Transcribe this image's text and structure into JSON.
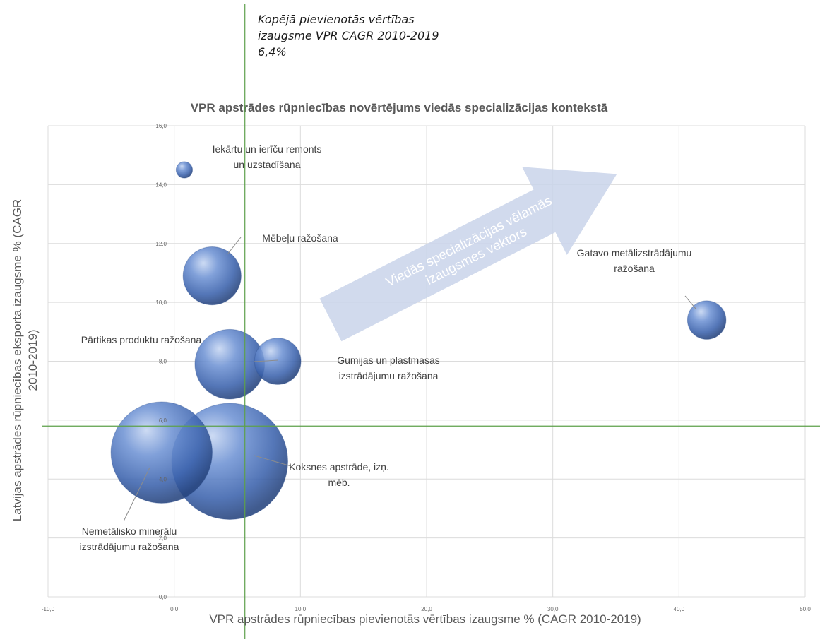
{
  "annotation": {
    "line1": "Kopējā pievienotās vērtības",
    "line2": "izaugsme VPR CAGR 2010-2019",
    "line3": "6,4%"
  },
  "chart_data": {
    "type": "bubble",
    "title": "VPR apstrādes rūpniecības novērtējums viedās specializācijas kontekstā",
    "xlabel": "VPR apstrādes rūpniecības pievienotās vērtības izaugsme % (CAGR 2010-2019)",
    "ylabel_lines": [
      "Latvijas apstrādes rūpniecības eksporta izaugsme % (CAGR",
      "2010-2019)"
    ],
    "xlim": [
      -10,
      50
    ],
    "ylim": [
      0,
      16
    ],
    "xticks": [
      "-10,0",
      "0,0",
      "10,0",
      "20,0",
      "30,0",
      "40,0",
      "50,0"
    ],
    "yticks": [
      "0,0",
      "2,0",
      "4,0",
      "6,0",
      "8,0",
      "10,0",
      "12,0",
      "14,0",
      "16,0"
    ],
    "grid": true,
    "reference_lines": {
      "x": 5.6,
      "y": 5.8
    },
    "arrow_text": [
      "Viedās specializācijas vēlamās",
      "izaugsmes vektors"
    ],
    "series": [
      {
        "label_lines": [
          "Iekārtu un ierīču remonts",
          "un uzstadīšana"
        ],
        "x": 0.8,
        "y": 14.5,
        "size": 0.2
      },
      {
        "label_lines": [
          "Mēbeļu ražošana"
        ],
        "x": 3.0,
        "y": 10.9,
        "size": 2.5
      },
      {
        "label_lines": [
          "Gatavo metālizstrādājumu",
          "ražošana"
        ],
        "x": 42.2,
        "y": 9.4,
        "size": 1.1
      },
      {
        "label_lines": [
          "Pārtikas produktu ražošana"
        ],
        "x": 4.4,
        "y": 7.9,
        "size": 3.6
      },
      {
        "label_lines": [
          "Gumijas un plastmasas",
          "izstrādājumu ražošana"
        ],
        "x": 8.2,
        "y": 8.0,
        "size": 1.6
      },
      {
        "label_lines": [
          "Nemetālisko minerālu",
          "izstrādājumu ražošana"
        ],
        "x": -1.0,
        "y": 4.9,
        "size": 7.6
      },
      {
        "label_lines": [
          "Koksnes apstrāde, izņ.",
          "mēb."
        ],
        "x": 4.4,
        "y": 4.6,
        "size": 10.0
      }
    ]
  }
}
